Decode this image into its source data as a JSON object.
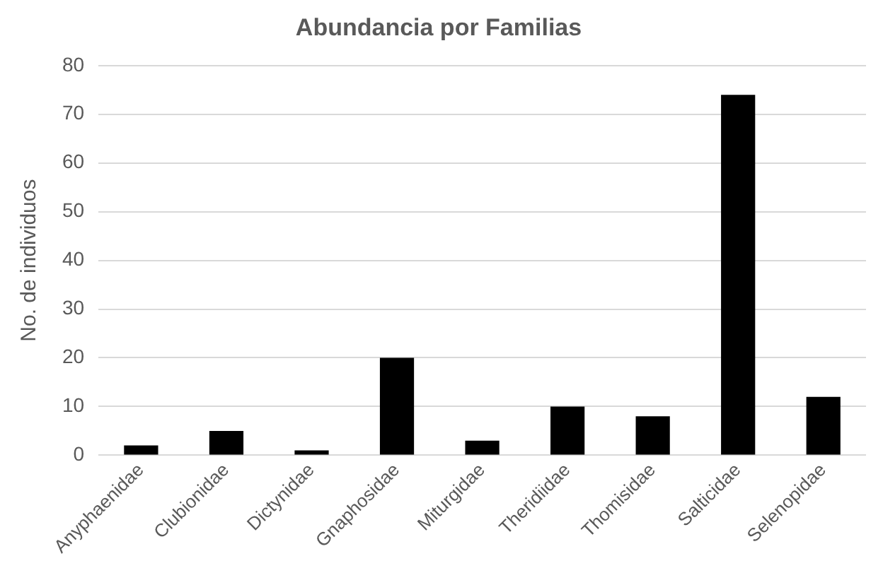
{
  "chart_data": {
    "type": "bar",
    "title": "Abundancia por Familias",
    "ylabel": "No. de individuos",
    "categories": [
      "Anyphaenidae",
      "Clubionidae",
      "Dictynidae",
      "Gnaphosidae",
      "Miturgidae",
      "Theridiidae",
      "Thomisidae",
      "Salticidae",
      "Selenopidae"
    ],
    "values": [
      2,
      5,
      1,
      20,
      3,
      10,
      8,
      74,
      12
    ],
    "color": "#000000",
    "ylim": [
      0,
      80
    ],
    "yticks": [
      0,
      10,
      20,
      30,
      40,
      50,
      60,
      70,
      80
    ],
    "grid": "y",
    "legend": false
  }
}
